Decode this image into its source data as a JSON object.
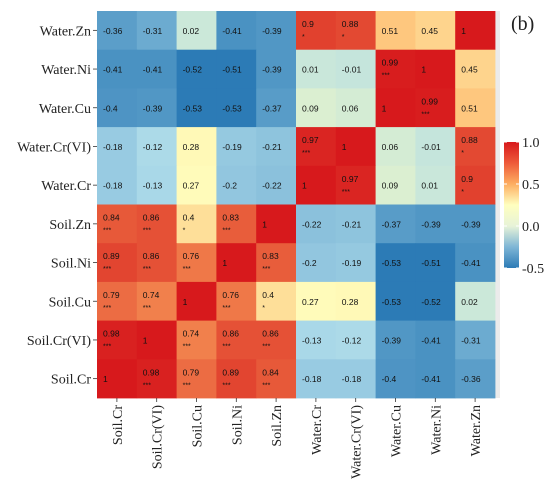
{
  "chart_data": {
    "type": "heatmap",
    "panel_label": "(b)",
    "variables": [
      "Soil.Cr",
      "Soil.Cr(VI)",
      "Soil.Cu",
      "Soil.Ni",
      "Soil.Zn",
      "Water.Cr",
      "Water.Cr(VI)",
      "Water.Cu",
      "Water.Ni",
      "Water.Zn"
    ],
    "rows": [
      "Water.Zn",
      "Water.Ni",
      "Water.Cu",
      "Water.Cr(VI)",
      "Water.Cr",
      "Soil.Zn",
      "Soil.Ni",
      "Soil.Cu",
      "Soil.Cr(VI)",
      "Soil.Cr"
    ],
    "columns": [
      "Soil.Cr",
      "Soil.Cr(VI)",
      "Soil.Cu",
      "Soil.Ni",
      "Soil.Zn",
      "Water.Cr",
      "Water.Cr(VI)",
      "Water.Cu",
      "Water.Ni",
      "Water.Zn"
    ],
    "values": [
      [
        -0.36,
        -0.31,
        0.02,
        -0.41,
        -0.39,
        0.9,
        0.88,
        0.51,
        0.45,
        1
      ],
      [
        -0.41,
        -0.41,
        -0.52,
        -0.51,
        -0.39,
        0.01,
        -0.01,
        0.99,
        1,
        0.45
      ],
      [
        -0.4,
        -0.39,
        -0.53,
        -0.53,
        -0.37,
        0.09,
        0.06,
        1,
        0.99,
        0.51
      ],
      [
        -0.18,
        -0.12,
        0.28,
        -0.19,
        -0.21,
        0.97,
        1,
        0.06,
        -0.01,
        0.88
      ],
      [
        -0.18,
        -0.13,
        0.27,
        -0.2,
        -0.22,
        1,
        0.97,
        0.09,
        0.01,
        0.9
      ],
      [
        0.84,
        0.86,
        0.4,
        0.83,
        1,
        -0.22,
        -0.21,
        -0.37,
        -0.39,
        -0.39
      ],
      [
        0.89,
        0.86,
        0.76,
        1,
        0.83,
        -0.2,
        -0.19,
        -0.53,
        -0.51,
        -0.41
      ],
      [
        0.79,
        0.74,
        1,
        0.76,
        0.4,
        0.27,
        0.28,
        -0.53,
        -0.52,
        0.02
      ],
      [
        0.98,
        1,
        0.74,
        0.86,
        0.86,
        -0.13,
        -0.12,
        -0.39,
        -0.41,
        -0.31
      ],
      [
        1,
        0.98,
        0.79,
        0.89,
        0.84,
        -0.18,
        -0.18,
        -0.4,
        -0.41,
        -0.36
      ]
    ],
    "significance": [
      [
        "",
        "",
        "",
        "",
        "",
        "*",
        "*",
        "",
        "",
        ""
      ],
      [
        "",
        "",
        "",
        "",
        "",
        "",
        "",
        "***",
        "",
        ""
      ],
      [
        "",
        "",
        "",
        "",
        "",
        "",
        "",
        "",
        "***",
        ""
      ],
      [
        "",
        "",
        "",
        "",
        "",
        "***",
        "",
        "",
        "",
        "*"
      ],
      [
        "",
        "",
        "",
        "",
        "",
        "",
        "***",
        "",
        "",
        "*"
      ],
      [
        "***",
        "***",
        "*",
        "***",
        "",
        "",
        "",
        "",
        "",
        ""
      ],
      [
        "***",
        "***",
        "***",
        "",
        "***",
        "",
        "",
        "",
        "",
        ""
      ],
      [
        "***",
        "***",
        "",
        "***",
        "*",
        "",
        "",
        "",
        "",
        ""
      ],
      [
        "***",
        "",
        "***",
        "***",
        "***",
        "",
        "",
        "",
        "",
        ""
      ],
      [
        "",
        "***",
        "***",
        "***",
        "***",
        "",
        "",
        "",
        "",
        ""
      ]
    ],
    "colorbar": {
      "range": [
        -0.5,
        1.0
      ],
      "ticks": [
        1.0,
        0.5,
        0.0,
        -0.5
      ],
      "tick_labels": [
        "1.0",
        "0.5",
        "0.0",
        "-0.5"
      ],
      "colors": [
        "#2c7bb6",
        "#abd9e9",
        "#ffffbf",
        "#fdae61",
        "#d7191c"
      ]
    },
    "colors": {
      "background": "#ffffff",
      "grid_background": "#ebebeb"
    }
  }
}
